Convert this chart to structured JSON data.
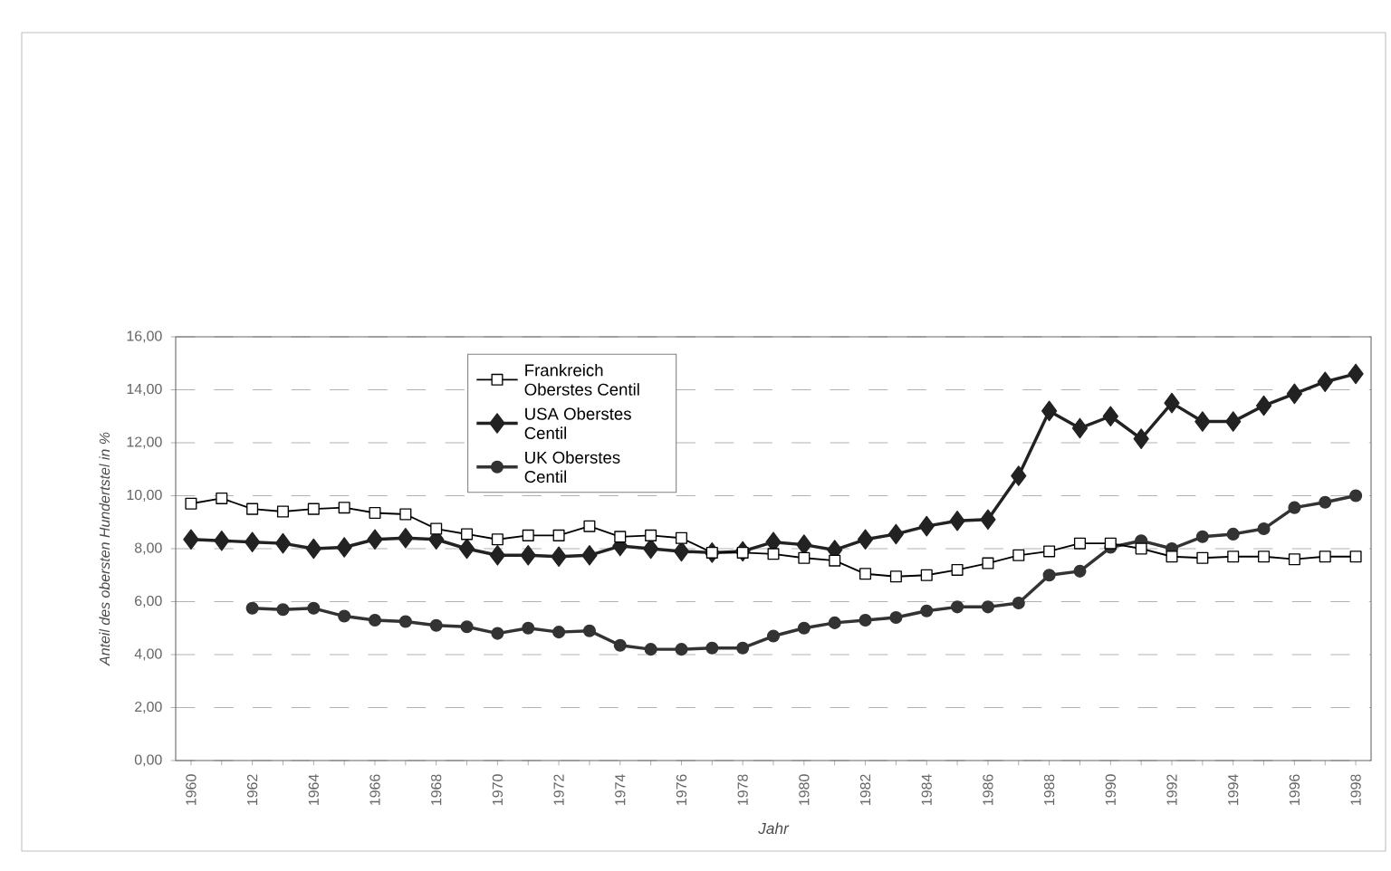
{
  "chart_data": {
    "type": "line",
    "xlabel": "Jahr",
    "ylabel": "Anteil des obersten Hundertstel in %",
    "x": [
      1960,
      1961,
      1962,
      1963,
      1964,
      1965,
      1966,
      1967,
      1968,
      1969,
      1970,
      1971,
      1972,
      1973,
      1974,
      1975,
      1976,
      1977,
      1978,
      1979,
      1980,
      1981,
      1982,
      1983,
      1984,
      1985,
      1986,
      1987,
      1988,
      1989,
      1990,
      1991,
      1992,
      1993,
      1994,
      1995,
      1996,
      1997,
      1998
    ],
    "series": [
      {
        "name": "Frankreich Oberstes Centil",
        "color": "#000000",
        "marker": "square",
        "values": [
          9.7,
          9.9,
          9.5,
          9.4,
          9.5,
          9.55,
          9.35,
          9.3,
          8.75,
          8.55,
          8.35,
          8.5,
          8.5,
          8.85,
          8.45,
          8.5,
          8.4,
          7.85,
          7.85,
          7.8,
          7.65,
          7.55,
          7.05,
          6.95,
          7.0,
          7.2,
          7.45,
          7.75,
          7.9,
          8.2,
          8.2,
          8.0,
          7.7,
          7.65,
          7.7,
          7.7,
          7.6,
          7.7,
          7.7
        ]
      },
      {
        "name": "USA Oberstes Centil",
        "color": "#222222",
        "marker": "diamond",
        "values": [
          8.35,
          8.3,
          8.25,
          8.2,
          8.0,
          8.05,
          8.35,
          8.4,
          8.35,
          8.0,
          7.75,
          7.75,
          7.7,
          7.75,
          8.1,
          8.0,
          7.9,
          7.85,
          7.9,
          8.25,
          8.15,
          7.95,
          8.35,
          8.55,
          8.85,
          9.05,
          9.1,
          10.75,
          13.2,
          12.55,
          13.0,
          12.15,
          13.5,
          12.8,
          12.8,
          13.4,
          13.85,
          14.3,
          14.6
        ]
      },
      {
        "name": "UK Oberstes Centil",
        "color": "#333333",
        "marker": "circle",
        "values": [
          null,
          null,
          5.75,
          5.7,
          5.75,
          5.45,
          5.3,
          5.25,
          5.1,
          5.05,
          4.8,
          5.0,
          4.85,
          4.9,
          4.35,
          4.2,
          4.2,
          4.25,
          4.25,
          4.7,
          5.0,
          5.2,
          5.3,
          5.4,
          5.65,
          5.8,
          5.8,
          5.95,
          7.0,
          7.15,
          8.05,
          8.3,
          8.0,
          8.45,
          8.55,
          8.75,
          9.55,
          9.75,
          10.0
        ]
      }
    ],
    "xlim": [
      1959.5,
      1998.5
    ],
    "xticks": [
      1960,
      {
        "value": 1961,
        "label": null
      },
      1962,
      {
        "value": 1963,
        "label": null
      },
      1964,
      {
        "value": 1965,
        "label": null
      },
      1966,
      {
        "value": 1967,
        "label": null
      },
      1968,
      {
        "value": 1969,
        "label": null
      },
      1970,
      {
        "value": 1971,
        "label": null
      },
      1972,
      {
        "value": 1973,
        "label": null
      },
      1974,
      {
        "value": 1975,
        "label": null
      },
      1976,
      {
        "value": 1977,
        "label": null
      },
      1978,
      {
        "value": 1979,
        "label": null
      },
      1980,
      {
        "value": 1981,
        "label": null
      },
      1982,
      {
        "value": 1983,
        "label": null
      },
      1984,
      {
        "value": 1985,
        "label": null
      },
      1986,
      {
        "value": 1987,
        "label": null
      },
      1988,
      {
        "value": 1989,
        "label": null
      },
      1990,
      {
        "value": 1991,
        "label": null
      },
      1992,
      {
        "value": 1993,
        "label": null
      },
      1994,
      {
        "value": 1995,
        "label": null
      },
      1996,
      {
        "value": 1997,
        "label": null
      },
      1998
    ],
    "ylim": [
      0,
      16
    ],
    "yticks": [
      {
        "value": 0,
        "label": "0,00"
      },
      {
        "value": 2,
        "label": "2,00"
      },
      {
        "value": 4,
        "label": "4,00"
      },
      {
        "value": 6,
        "label": "6,00"
      },
      {
        "value": 8,
        "label": "8,00"
      },
      {
        "value": 10,
        "label": "10,00"
      },
      {
        "value": 12,
        "label": "12,00"
      },
      {
        "value": 14,
        "label": "14,00"
      },
      {
        "value": 16,
        "label": "16,00"
      }
    ],
    "grid": "y",
    "legend": "top"
  }
}
